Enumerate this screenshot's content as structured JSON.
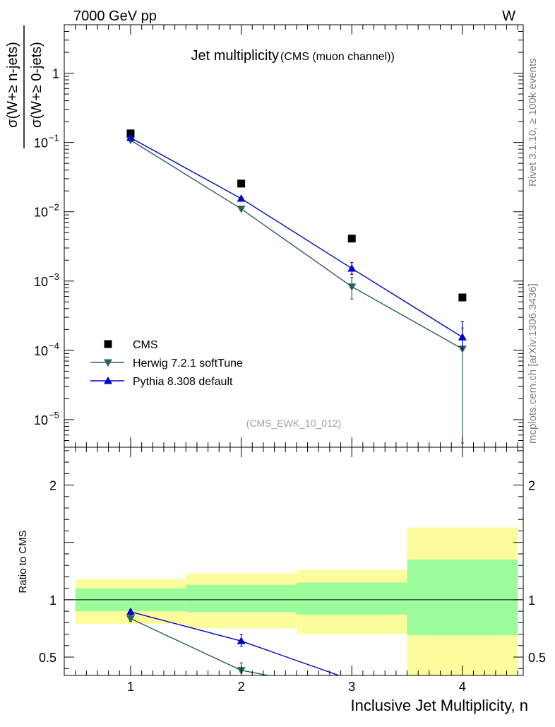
{
  "header": {
    "energy_label": "7000 GeV pp",
    "process_label": "W"
  },
  "side_labels": {
    "rivet": "Rivet 3.1.10, ≥ 100k events",
    "mcplots": "mcplots.cern.ch [arXiv:1306.3436]"
  },
  "chart_data": [
    {
      "panel": "main",
      "type": "scatter",
      "title": "Jet multiplicity",
      "subtitle": "(CMS (muon channel))",
      "watermark": "(CMS_EWK_10_012)",
      "ylabel_numerator": "σ(W+≥ n-jets)",
      "ylabel_denominator": "σ(W+≥ 0-jets)",
      "xlim": [
        0.4,
        4.55
      ],
      "ylim": [
        4e-06,
        5.0
      ],
      "yscale": "log",
      "x_ticks": [
        1,
        2,
        3,
        4
      ],
      "y_ticks": [
        {
          "value": 1e-05,
          "label": "10",
          "exp": "−5"
        },
        {
          "value": 0.0001,
          "label": "10",
          "exp": "−4"
        },
        {
          "value": 0.001,
          "label": "10",
          "exp": "−3"
        },
        {
          "value": 0.01,
          "label": "10",
          "exp": "−2"
        },
        {
          "value": 0.1,
          "label": "10",
          "exp": "−1"
        },
        {
          "value": 1,
          "label": "1",
          "exp": ""
        }
      ],
      "legend_position": "bottom-left",
      "series": [
        {
          "name": "CMS",
          "marker": "square",
          "color": "#000000",
          "x": [
            1,
            2,
            3,
            4
          ],
          "y": [
            0.135,
            0.0255,
            0.0041,
            0.00058
          ]
        },
        {
          "name": "Herwig 7.2.1 softTune",
          "marker": "triangle-down",
          "color": "#2a6060",
          "x": [
            1,
            2,
            3,
            4
          ],
          "y": [
            0.108,
            0.011,
            0.00083,
            0.000105
          ],
          "err_lo": [
            0.108,
            0.011,
            0.00055,
            4.6e-06
          ],
          "err_hi": [
            0.108,
            0.011,
            0.00113,
            0.00021
          ]
        },
        {
          "name": "Pythia 8.308 default",
          "marker": "triangle-up",
          "color": "#0000cc",
          "x": [
            1,
            2,
            3,
            4
          ],
          "y": [
            0.117,
            0.0155,
            0.00152,
            0.000155
          ],
          "err_lo": [
            0.117,
            0.0155,
            0.00125,
            0.000105
          ],
          "err_hi": [
            0.117,
            0.0155,
            0.00185,
            0.00026
          ]
        }
      ]
    },
    {
      "panel": "ratio",
      "type": "line",
      "ylabel": "Ratio to CMS",
      "xlabel": "Inclusive Jet Multiplicity, n",
      "xlim": [
        0.4,
        4.55
      ],
      "ylim": [
        0.34,
        2.33
      ],
      "x_ticks": [
        1,
        2,
        3,
        4
      ],
      "y_ticks": [
        0.5,
        1,
        2
      ],
      "reference_line": 1,
      "bands": [
        {
          "x0": 0.5,
          "x1": 1.5,
          "inner": [
            0.9,
            1.1
          ],
          "outer": [
            0.79,
            1.18
          ]
        },
        {
          "x0": 1.5,
          "x1": 2.5,
          "inner": [
            0.89,
            1.13
          ],
          "outer": [
            0.75,
            1.23
          ]
        },
        {
          "x0": 2.5,
          "x1": 3.5,
          "inner": [
            0.87,
            1.15
          ],
          "outer": [
            0.7,
            1.26
          ]
        },
        {
          "x0": 3.5,
          "x1": 4.5,
          "inner": [
            0.69,
            1.35
          ],
          "outer": [
            0.34,
            1.63
          ]
        }
      ],
      "band_colors": {
        "inner": "#9cfc9c",
        "outer": "#fcfc9c"
      },
      "series": [
        {
          "name": "Herwig 7.2.1 softTune",
          "color": "#2a6060",
          "marker": "triangle-down",
          "x": [
            1,
            2,
            3
          ],
          "y": [
            0.835,
            0.385,
            0.2
          ],
          "err_lo": [
            0.81,
            0.365,
            0.2
          ],
          "err_hi": [
            0.865,
            0.45,
            0.2
          ]
        },
        {
          "name": "Pythia 8.308 default",
          "color": "#0000cc",
          "marker": "triangle-up",
          "x": [
            1,
            2,
            3
          ],
          "y": [
            0.895,
            0.64,
            0.3
          ],
          "err_lo": [
            0.875,
            0.595,
            0.3
          ],
          "err_hi": [
            0.915,
            0.695,
            0.3
          ]
        }
      ]
    }
  ]
}
